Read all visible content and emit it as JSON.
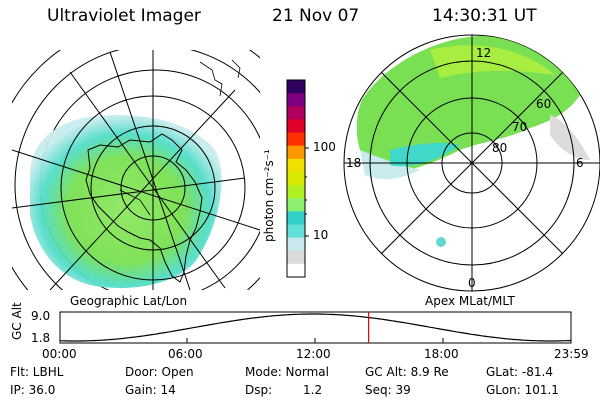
{
  "header": {
    "title": "Ultraviolet Imager",
    "date": "21 Nov 07",
    "time": "14:30:31 UT"
  },
  "colorbar": {
    "label": "photon cm⁻²s⁻¹",
    "ticks": [
      "100",
      "10"
    ],
    "colors": [
      "#ffffff",
      "#dcdcdc",
      "#c8e8ee",
      "#60e0d8",
      "#30d0c8",
      "#8cf070",
      "#b0f020",
      "#d8e800",
      "#f0e000",
      "#ff9800",
      "#ff3000",
      "#e0002a",
      "#b00060",
      "#7c0080",
      "#300060"
    ]
  },
  "left_map": {
    "caption": "Geographic Lat/Lon"
  },
  "right_map": {
    "caption": "Apex MLat/MLT",
    "mlt_labels": {
      "top": "12",
      "right": "6",
      "bottom": "0",
      "left": "18"
    },
    "lat_labels": [
      "60",
      "70",
      "80"
    ]
  },
  "timeline": {
    "ylabel": "GC Alt",
    "ytick_high": "9.0",
    "ytick_low": "1.8",
    "xticks": [
      "00:00",
      "06:00",
      "12:00",
      "18:00",
      "23:59"
    ],
    "marker_fraction": 0.604
  },
  "info": {
    "row1": {
      "filter": "Flt: LBHL",
      "door": "Door: Open",
      "mode": "Mode: Normal",
      "gcalt": "GC Alt: 8.9 Re",
      "glat": "GLat: -81.4"
    },
    "row2": {
      "ip": "IP: 36.0",
      "gain": "Gain: 14",
      "dsp_label": "Dsp:",
      "dsp_value": "1.2",
      "seq": "Seq: 39",
      "glon": "GLon: 101.1"
    }
  },
  "colors": {
    "marker": "#e00000",
    "cyan": "#40e0d0",
    "green": "#70e040"
  }
}
